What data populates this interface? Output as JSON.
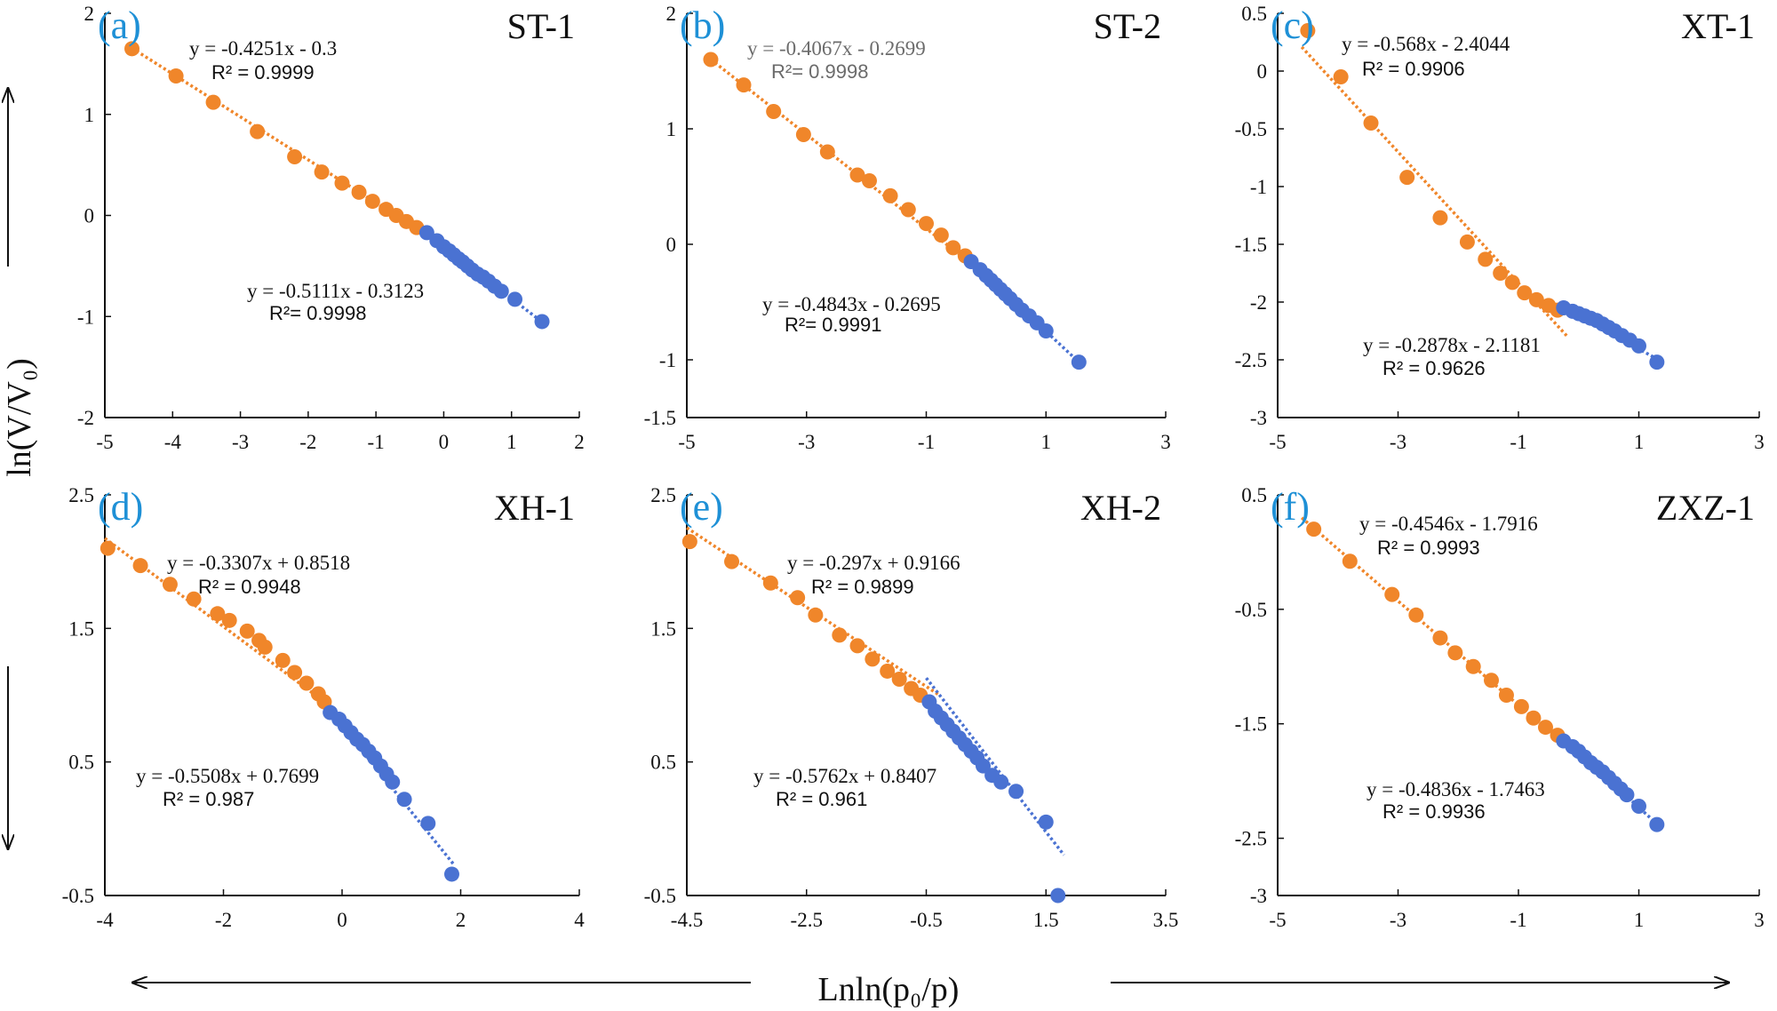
{
  "figure": {
    "xlabel": "Lnln(p₀/p)",
    "ylabel": "ln(V/V₀)",
    "colors": {
      "low": "#f0862a",
      "high": "#4a72d2",
      "axis": "#111111",
      "letter": "#1e90d6"
    }
  },
  "chart_data": [
    {
      "type": "scatter",
      "panel": "(a)",
      "letter": "a",
      "title": "ST-1",
      "xlim": [
        -5,
        2
      ],
      "ylim": [
        -2,
        2
      ],
      "xticks": [
        -5,
        -4,
        -3,
        -2,
        -1,
        0,
        1,
        2
      ],
      "yticks": [
        -2,
        -1,
        0,
        1,
        2
      ],
      "series": [
        {
          "name": "orange",
          "color": "#f0862a",
          "fit_x": [
            -4.6,
            -0.3
          ],
          "fit": {
            "slope": -0.4251,
            "intercept": -0.3
          },
          "points": [
            [
              -4.6,
              1.65
            ],
            [
              -3.95,
              1.38
            ],
            [
              -3.4,
              1.12
            ],
            [
              -2.75,
              0.83
            ],
            [
              -2.2,
              0.58
            ],
            [
              -1.8,
              0.43
            ],
            [
              -1.5,
              0.32
            ],
            [
              -1.25,
              0.23
            ],
            [
              -1.05,
              0.14
            ],
            [
              -0.85,
              0.06
            ],
            [
              -0.7,
              0.0
            ],
            [
              -0.55,
              -0.06
            ],
            [
              -0.4,
              -0.12
            ]
          ],
          "equation": "y = -0.4251x - 0.3",
          "r2": "R² = 0.9999"
        },
        {
          "name": "blue",
          "color": "#4a72d2",
          "fit_x": [
            -0.35,
            1.45
          ],
          "fit": {
            "slope": -0.5111,
            "intercept": -0.3123
          },
          "points": [
            [
              -0.25,
              -0.17
            ],
            [
              -0.1,
              -0.25
            ],
            [
              0.0,
              -0.31
            ],
            [
              0.08,
              -0.35
            ],
            [
              0.15,
              -0.39
            ],
            [
              0.22,
              -0.43
            ],
            [
              0.28,
              -0.46
            ],
            [
              0.35,
              -0.5
            ],
            [
              0.42,
              -0.54
            ],
            [
              0.5,
              -0.58
            ],
            [
              0.58,
              -0.61
            ],
            [
              0.66,
              -0.65
            ],
            [
              0.75,
              -0.7
            ],
            [
              0.85,
              -0.75
            ],
            [
              1.05,
              -0.83
            ],
            [
              1.45,
              -1.05
            ]
          ],
          "equation": "y = -0.5111x - 0.3123",
          "r2": "R²= 0.9998"
        }
      ]
    },
    {
      "type": "scatter",
      "panel": "(b)",
      "letter": "b",
      "title": "ST-2",
      "xlim": [
        -5,
        3
      ],
      "ylim": [
        -1.5,
        2
      ],
      "xticks": [
        -5,
        -3,
        -1,
        1,
        3
      ],
      "yticks": [
        -1.5,
        -1,
        0,
        1,
        2
      ],
      "series": [
        {
          "name": "orange",
          "color": "#f0862a",
          "fit_x": [
            -4.6,
            -0.3
          ],
          "fit": {
            "slope": -0.4067,
            "intercept": -0.2699
          },
          "points": [
            [
              -4.6,
              1.6
            ],
            [
              -4.05,
              1.38
            ],
            [
              -3.55,
              1.15
            ],
            [
              -3.05,
              0.95
            ],
            [
              -2.65,
              0.8
            ],
            [
              -2.15,
              0.6
            ],
            [
              -1.95,
              0.55
            ],
            [
              -1.6,
              0.42
            ],
            [
              -1.3,
              0.3
            ],
            [
              -1.0,
              0.18
            ],
            [
              -0.75,
              0.08
            ],
            [
              -0.55,
              -0.03
            ],
            [
              -0.35,
              -0.1
            ]
          ],
          "equation": "y = -0.4067x - 0.2699",
          "r2": "R²= 0.9998"
        },
        {
          "name": "blue",
          "color": "#4a72d2",
          "fit_x": [
            -0.35,
            1.55
          ],
          "fit": {
            "slope": -0.4843,
            "intercept": -0.2695
          },
          "points": [
            [
              -0.25,
              -0.15
            ],
            [
              -0.1,
              -0.22
            ],
            [
              0.0,
              -0.27
            ],
            [
              0.08,
              -0.31
            ],
            [
              0.16,
              -0.35
            ],
            [
              0.24,
              -0.39
            ],
            [
              0.32,
              -0.43
            ],
            [
              0.4,
              -0.47
            ],
            [
              0.5,
              -0.52
            ],
            [
              0.6,
              -0.57
            ],
            [
              0.72,
              -0.62
            ],
            [
              0.85,
              -0.68
            ],
            [
              1.0,
              -0.75
            ],
            [
              1.55,
              -1.02
            ]
          ],
          "equation": "y = -0.4843x - 0.2695",
          "r2": "R²= 0.9991"
        }
      ]
    },
    {
      "type": "scatter",
      "panel": "(c)",
      "letter": "c",
      "title": "XT-1",
      "xlim": [
        -5,
        3
      ],
      "ylim": [
        -3,
        0.5
      ],
      "xticks": [
        -5,
        -3,
        -1,
        1,
        3
      ],
      "yticks": [
        -3,
        -2.5,
        -2,
        -1.5,
        -1,
        -0.5,
        0,
        0.5
      ],
      "series": [
        {
          "name": "orange",
          "color": "#f0862a",
          "fit_x": [
            -4.6,
            -0.2
          ],
          "fit": {
            "slope": -0.568,
            "intercept": -2.4044
          },
          "points": [
            [
              -4.5,
              0.35
            ],
            [
              -3.95,
              -0.05
            ],
            [
              -3.45,
              -0.45
            ],
            [
              -2.85,
              -0.92
            ],
            [
              -2.3,
              -1.27
            ],
            [
              -1.85,
              -1.48
            ],
            [
              -1.55,
              -1.63
            ],
            [
              -1.3,
              -1.75
            ],
            [
              -1.1,
              -1.83
            ],
            [
              -0.9,
              -1.92
            ],
            [
              -0.7,
              -1.98
            ],
            [
              -0.5,
              -2.03
            ],
            [
              -0.35,
              -2.07
            ]
          ],
          "equation": "y = -0.568x - 2.4044",
          "r2": "R² = 0.9906"
        },
        {
          "name": "blue",
          "color": "#4a72d2",
          "fit_x": [
            -0.35,
            1.4
          ],
          "fit": {
            "slope": -0.2878,
            "intercept": -2.1181
          },
          "points": [
            [
              -0.25,
              -2.05
            ],
            [
              -0.1,
              -2.08
            ],
            [
              0.0,
              -2.1
            ],
            [
              0.1,
              -2.12
            ],
            [
              0.2,
              -2.14
            ],
            [
              0.3,
              -2.16
            ],
            [
              0.4,
              -2.19
            ],
            [
              0.5,
              -2.22
            ],
            [
              0.6,
              -2.25
            ],
            [
              0.72,
              -2.29
            ],
            [
              0.85,
              -2.33
            ],
            [
              1.0,
              -2.38
            ],
            [
              1.3,
              -2.52
            ]
          ],
          "equation": "y = -0.2878x - 2.1181",
          "r2": "R² = 0.9626"
        }
      ]
    },
    {
      "type": "scatter",
      "panel": "(d)",
      "letter": "d",
      "title": "XH-1",
      "xlim": [
        -4,
        4
      ],
      "ylim": [
        -0.5,
        2.5
      ],
      "xticks": [
        -4,
        -2,
        0,
        2,
        4
      ],
      "yticks": [
        -0.5,
        0.5,
        1.5,
        2.5
      ],
      "series": [
        {
          "name": "orange",
          "color": "#f0862a",
          "fit_x": [
            -4.0,
            -0.25
          ],
          "fit": {
            "slope": -0.3307,
            "intercept": 0.8518
          },
          "points": [
            [
              -3.95,
              2.1
            ],
            [
              -3.4,
              1.97
            ],
            [
              -2.9,
              1.83
            ],
            [
              -2.5,
              1.72
            ],
            [
              -2.1,
              1.61
            ],
            [
              -1.9,
              1.56
            ],
            [
              -1.6,
              1.48
            ],
            [
              -1.4,
              1.41
            ],
            [
              -1.3,
              1.36
            ],
            [
              -1.0,
              1.26
            ],
            [
              -0.8,
              1.17
            ],
            [
              -0.6,
              1.09
            ],
            [
              -0.4,
              1.01
            ],
            [
              -0.3,
              0.95
            ]
          ],
          "equation": "y = -0.3307x + 0.8518",
          "r2": "R² = 0.9948"
        },
        {
          "name": "blue",
          "color": "#4a72d2",
          "fit_x": [
            -0.3,
            1.9
          ],
          "fit": {
            "slope": -0.5508,
            "intercept": 0.7699
          },
          "points": [
            [
              -0.2,
              0.87
            ],
            [
              -0.05,
              0.82
            ],
            [
              0.05,
              0.77
            ],
            [
              0.15,
              0.72
            ],
            [
              0.25,
              0.67
            ],
            [
              0.35,
              0.63
            ],
            [
              0.45,
              0.58
            ],
            [
              0.55,
              0.53
            ],
            [
              0.65,
              0.47
            ],
            [
              0.75,
              0.41
            ],
            [
              0.85,
              0.35
            ],
            [
              1.05,
              0.22
            ],
            [
              1.45,
              0.04
            ],
            [
              1.85,
              -0.34
            ]
          ],
          "equation": "y = -0.5508x + 0.7699",
          "r2": "R² = 0.987"
        }
      ]
    },
    {
      "type": "scatter",
      "panel": "(e)",
      "letter": "e",
      "title": "XH-2",
      "xlim": [
        -4.5,
        3.5
      ],
      "ylim": [
        -0.5,
        2.5
      ],
      "xticks": [
        -4.5,
        -2.5,
        -0.5,
        1.5,
        3.5
      ],
      "yticks": [
        -0.5,
        0.5,
        1.5,
        2.5
      ],
      "series": [
        {
          "name": "orange",
          "color": "#f0862a",
          "fit_x": [
            -4.5,
            -0.3
          ],
          "fit": {
            "slope": -0.297,
            "intercept": 0.9166
          },
          "points": [
            [
              -4.45,
              2.15
            ],
            [
              -3.75,
              2.0
            ],
            [
              -3.1,
              1.84
            ],
            [
              -2.65,
              1.73
            ],
            [
              -2.35,
              1.6
            ],
            [
              -1.95,
              1.45
            ],
            [
              -1.65,
              1.37
            ],
            [
              -1.4,
              1.27
            ],
            [
              -1.15,
              1.18
            ],
            [
              -0.95,
              1.12
            ],
            [
              -0.75,
              1.05
            ],
            [
              -0.6,
              1.0
            ]
          ],
          "equation": "y = -0.297x + 0.9166",
          "r2": "R² = 0.9899"
        },
        {
          "name": "blue",
          "color": "#4a72d2",
          "fit_x": [
            -0.5,
            1.8
          ],
          "fit": {
            "slope": -0.5762,
            "intercept": 0.8407
          },
          "points": [
            [
              -0.45,
              0.95
            ],
            [
              -0.35,
              0.88
            ],
            [
              -0.25,
              0.83
            ],
            [
              -0.15,
              0.78
            ],
            [
              -0.05,
              0.73
            ],
            [
              0.05,
              0.68
            ],
            [
              0.15,
              0.63
            ],
            [
              0.25,
              0.58
            ],
            [
              0.35,
              0.53
            ],
            [
              0.45,
              0.47
            ],
            [
              0.6,
              0.4
            ],
            [
              0.75,
              0.35
            ],
            [
              1.0,
              0.28
            ],
            [
              1.5,
              0.05
            ],
            [
              1.7,
              -0.5
            ]
          ],
          "equation": "y = -0.5762x + 0.8407",
          "r2": "R² = 0.961"
        }
      ]
    },
    {
      "type": "scatter",
      "panel": "(f)",
      "letter": "f",
      "title": "ZXZ-1",
      "xlim": [
        -5,
        3
      ],
      "ylim": [
        -3,
        0.5
      ],
      "xticks": [
        -5,
        -3,
        -1,
        1,
        3
      ],
      "yticks": [
        -3,
        -2.5,
        -1.5,
        -0.5,
        0.5
      ],
      "series": [
        {
          "name": "orange",
          "color": "#f0862a",
          "fit_x": [
            -4.6,
            -0.3
          ],
          "fit": {
            "slope": -0.4546,
            "intercept": -1.7916
          },
          "points": [
            [
              -4.4,
              0.2
            ],
            [
              -3.8,
              -0.08
            ],
            [
              -3.1,
              -0.37
            ],
            [
              -2.7,
              -0.55
            ],
            [
              -2.3,
              -0.75
            ],
            [
              -2.05,
              -0.88
            ],
            [
              -1.75,
              -1.0
            ],
            [
              -1.45,
              -1.12
            ],
            [
              -1.2,
              -1.25
            ],
            [
              -0.95,
              -1.35
            ],
            [
              -0.75,
              -1.45
            ],
            [
              -0.55,
              -1.53
            ],
            [
              -0.35,
              -1.6
            ]
          ],
          "equation": "y = -0.4546x - 1.7916",
          "r2": "R² = 0.9993"
        },
        {
          "name": "blue",
          "color": "#4a72d2",
          "fit_x": [
            -0.35,
            1.3
          ],
          "fit": {
            "slope": -0.4836,
            "intercept": -1.7463
          },
          "points": [
            [
              -0.25,
              -1.65
            ],
            [
              -0.1,
              -1.7
            ],
            [
              0.0,
              -1.74
            ],
            [
              0.1,
              -1.79
            ],
            [
              0.2,
              -1.84
            ],
            [
              0.3,
              -1.88
            ],
            [
              0.4,
              -1.92
            ],
            [
              0.5,
              -1.97
            ],
            [
              0.6,
              -2.02
            ],
            [
              0.7,
              -2.07
            ],
            [
              0.8,
              -2.12
            ],
            [
              1.0,
              -2.22
            ],
            [
              1.3,
              -2.38
            ]
          ],
          "equation": "y = -0.4836x - 1.7463",
          "r2": "R² = 0.9936"
        }
      ]
    }
  ]
}
